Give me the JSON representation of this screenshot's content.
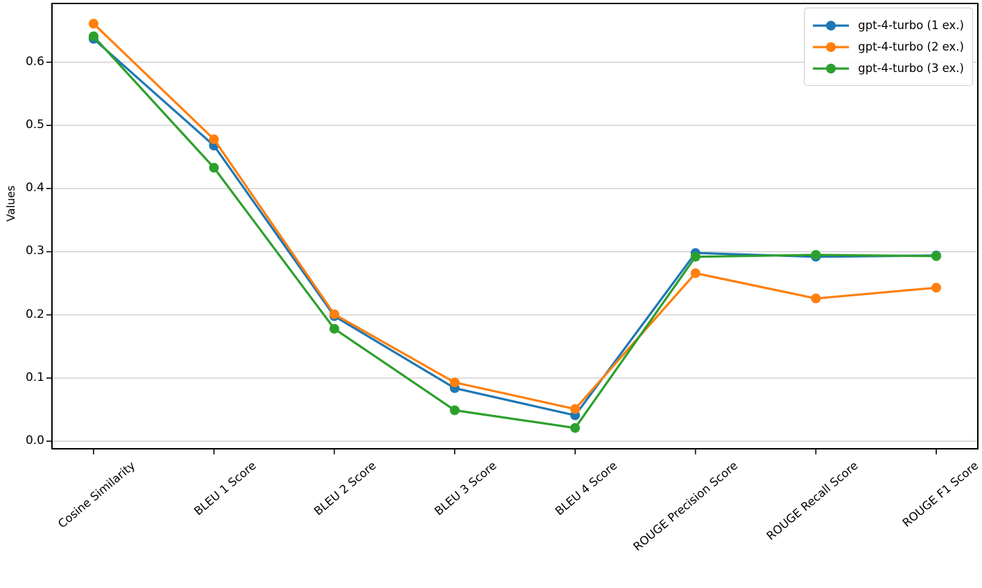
{
  "chart_data": {
    "type": "line",
    "title": "",
    "xlabel": "",
    "ylabel": "Values",
    "categories": [
      "Cosine Similarity",
      "BLEU 1 Score",
      "BLEU 2 Score",
      "BLEU 3 Score",
      "BLEU 4 Score",
      "ROUGE Precision Score",
      "ROUGE Recall Score",
      "ROUGE F1 Score"
    ],
    "series": [
      {
        "name": "gpt-4-turbo (1 ex.)",
        "color": "#1f77b4",
        "values": [
          0.637,
          0.468,
          0.198,
          0.084,
          0.041,
          0.298,
          0.292,
          0.294
        ]
      },
      {
        "name": "gpt-4-turbo (2 ex.)",
        "color": "#ff7f0e",
        "values": [
          0.661,
          0.478,
          0.201,
          0.093,
          0.051,
          0.266,
          0.226,
          0.243
        ]
      },
      {
        "name": "gpt-4-turbo (3 ex.)",
        "color": "#2ca02c",
        "values": [
          0.641,
          0.433,
          0.178,
          0.049,
          0.021,
          0.292,
          0.295,
          0.293
        ]
      }
    ],
    "yticks": [
      "0.0",
      "0.1",
      "0.2",
      "0.3",
      "0.4",
      "0.5",
      "0.6"
    ],
    "ylim": [
      -0.012,
      0.693
    ],
    "grid": true,
    "grid_color": "#cccccc",
    "spine_color": "#000000",
    "legend_position": "upper right",
    "x_tick_rotation_deg": 40
  }
}
